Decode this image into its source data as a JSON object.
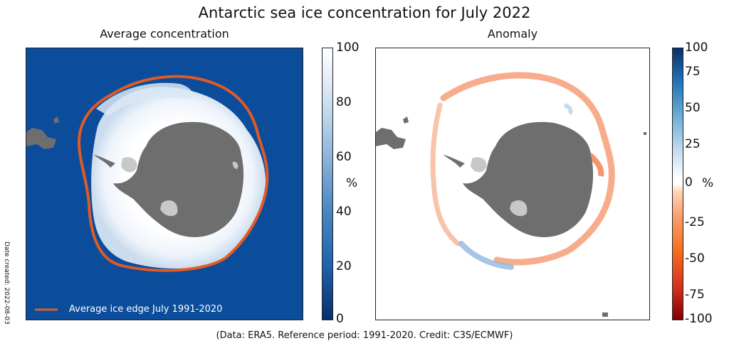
{
  "figure": {
    "title": "Antarctic sea ice concentration for July 2022",
    "credit": "(Data: ERA5.  Reference period: 1991-2020.  Credit: C3S/ECMWF)",
    "date_created": "Date created: 2022-08-03"
  },
  "left_panel": {
    "title": "Average concentration",
    "legend_label": "Average ice edge July 1991-2020",
    "colorbar": {
      "unit": "%",
      "ticks": [
        "100",
        "80",
        "60",
        "40",
        "20",
        "0"
      ]
    }
  },
  "right_panel": {
    "title": "Anomaly",
    "colorbar": {
      "unit": "%",
      "ticks": [
        "100",
        "75",
        "50",
        "25",
        "0",
        "-25",
        "-50",
        "-75",
        "-100"
      ]
    }
  },
  "colors": {
    "ocean": "#0b4d9b",
    "ice_edge": "#e05a26",
    "land": "#6e6e6e",
    "ice_shelf": "#c8c8c8",
    "negative_anomaly": "#f06a2d",
    "positive_anomaly": "#8fb8de"
  },
  "chart_data": {
    "type": "heatmap",
    "title": "Antarctic sea ice concentration for July 2022",
    "panels": [
      {
        "name": "Average concentration",
        "unit": "%",
        "range": [
          0,
          100
        ],
        "colorbar_ticks": [
          0,
          20,
          40,
          60,
          80,
          100
        ]
      },
      {
        "name": "Anomaly",
        "unit": "%",
        "range": [
          -100,
          100
        ],
        "colorbar_ticks": [
          -100,
          -75,
          -50,
          -25,
          0,
          25,
          50,
          75,
          100
        ]
      }
    ]
  }
}
